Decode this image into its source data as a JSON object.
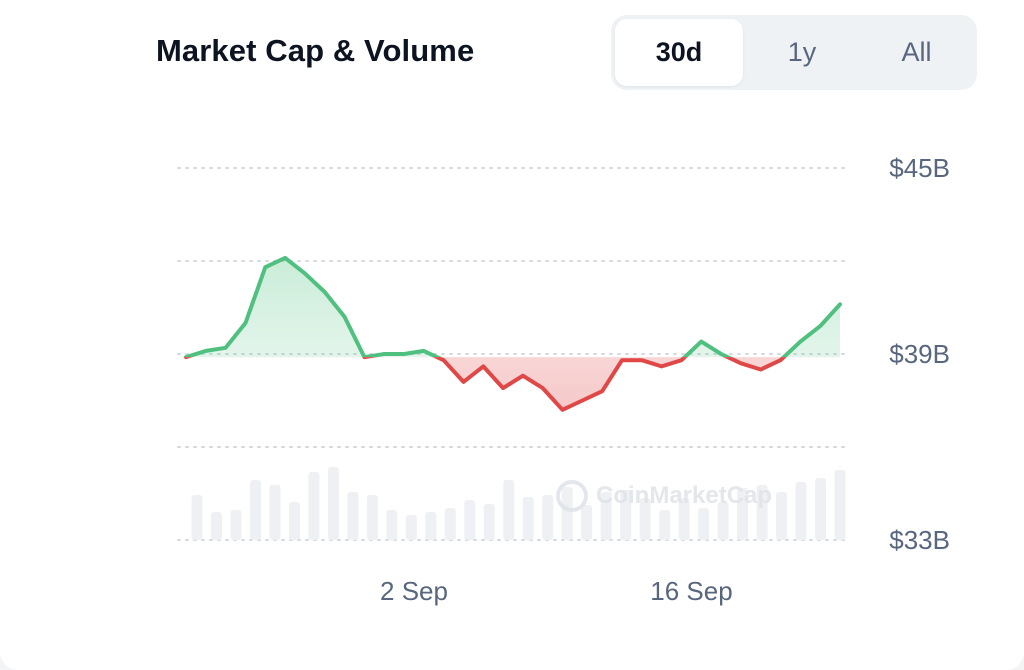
{
  "header": {
    "title": "Market Cap & Volume"
  },
  "range_tabs": [
    {
      "label": "30d",
      "active": true
    },
    {
      "label": "1y",
      "active": false
    },
    {
      "label": "All",
      "active": false
    }
  ],
  "watermark": "CoinMarketCap",
  "colors": {
    "up": "#4fc07f",
    "down": "#e04848",
    "grid": "#d5dae0",
    "volume": "#eef0f3",
    "label": "#58667e"
  },
  "chart_data": {
    "type": "area",
    "title": "Market Cap & Volume",
    "x_tick_labels": [
      "2 Sep",
      "16 Sep"
    ],
    "x_tick_day_index": [
      11,
      25
    ],
    "y_tick_labels": [
      "$45B",
      "$39B",
      "$33B"
    ],
    "y_ticks_values_B": [
      45,
      39,
      33
    ],
    "ylim": [
      33,
      45
    ],
    "y_grid_values_B": [
      45,
      42,
      39,
      36,
      33
    ],
    "baseline_B": 38.9,
    "grid": true,
    "series": [
      {
        "market_cap_B": [
          38.9,
          39.1,
          39.2,
          40.0,
          41.8,
          42.1,
          41.6,
          41.0,
          40.2,
          38.9,
          39.0,
          39.0,
          39.1,
          38.8,
          38.1,
          38.6,
          37.9,
          38.3,
          37.9,
          37.2,
          37.5,
          37.8,
          38.8,
          38.8,
          38.6,
          38.8,
          39.4,
          39.0,
          38.7,
          38.5,
          38.8,
          39.4,
          39.9,
          40.6
        ],
        "volume_relative": [
          0.45,
          0.28,
          0.3,
          0.6,
          0.55,
          0.38,
          0.68,
          0.73,
          0.48,
          0.45,
          0.3,
          0.25,
          0.28,
          0.32,
          0.4,
          0.36,
          0.6,
          0.43,
          0.45,
          0.53,
          0.35,
          0.48,
          0.5,
          0.42,
          0.3,
          0.42,
          0.32,
          0.38,
          0.52,
          0.55,
          0.48,
          0.58,
          0.62,
          0.7
        ]
      }
    ]
  }
}
